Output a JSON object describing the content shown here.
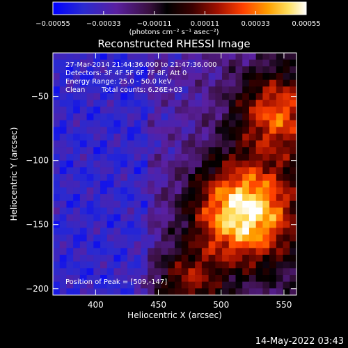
{
  "chart_data": {
    "type": "heatmap",
    "title": "Reconstructed RHESSI Image",
    "xlabel": "Heliocentric X (arcsec)",
    "ylabel": "Heliocentric Y (arcsec)",
    "xlim": [
      366,
      560
    ],
    "ylim": [
      -205,
      -16
    ],
    "x_ticks": [
      400,
      450,
      500,
      550
    ],
    "x_tick_labels": [
      "400",
      "450",
      "500",
      "550"
    ],
    "y_ticks": [
      -50,
      -100,
      -150,
      -200
    ],
    "y_tick_labels": [
      "−50",
      "−100",
      "−150",
      "−200"
    ],
    "colorbar": {
      "min": -0.00055,
      "max": 0.00055,
      "ticks": [
        -0.00055,
        -0.00033,
        -0.00011,
        0.00011,
        0.00033,
        0.00055
      ],
      "tick_labels": [
        "−0.00055",
        "−0.00033",
        "−0.00011",
        "0.00011",
        "0.00033",
        "0.00055"
      ],
      "unit_label": "(photons cm⁻² s⁻¹ asec⁻²)",
      "colors": [
        "#0000ff",
        "#3a20c8",
        "#5a20a0",
        "#3a1040",
        "#000000",
        "#5a0000",
        "#b01000",
        "#ff4000",
        "#ffa000",
        "#ffe060",
        "#ffffff"
      ]
    },
    "annotations": {
      "time_range": "27-Mar-2014 21:44:36.000 to 21:47:36.000",
      "detectors": "Detectors: 3F 4F 5F 6F 7F 8F, Att 0",
      "energy_range": "Energy Range: 25.0 - 50.0 keV",
      "method": "Clean",
      "total_counts": "Total counts: 6.26E+03",
      "peak": "Position of Peak = [509,-147]"
    },
    "peak": {
      "x": 509,
      "y": -147
    },
    "grid": false
  },
  "footer": {
    "date": "14-May-2022 03:43"
  }
}
